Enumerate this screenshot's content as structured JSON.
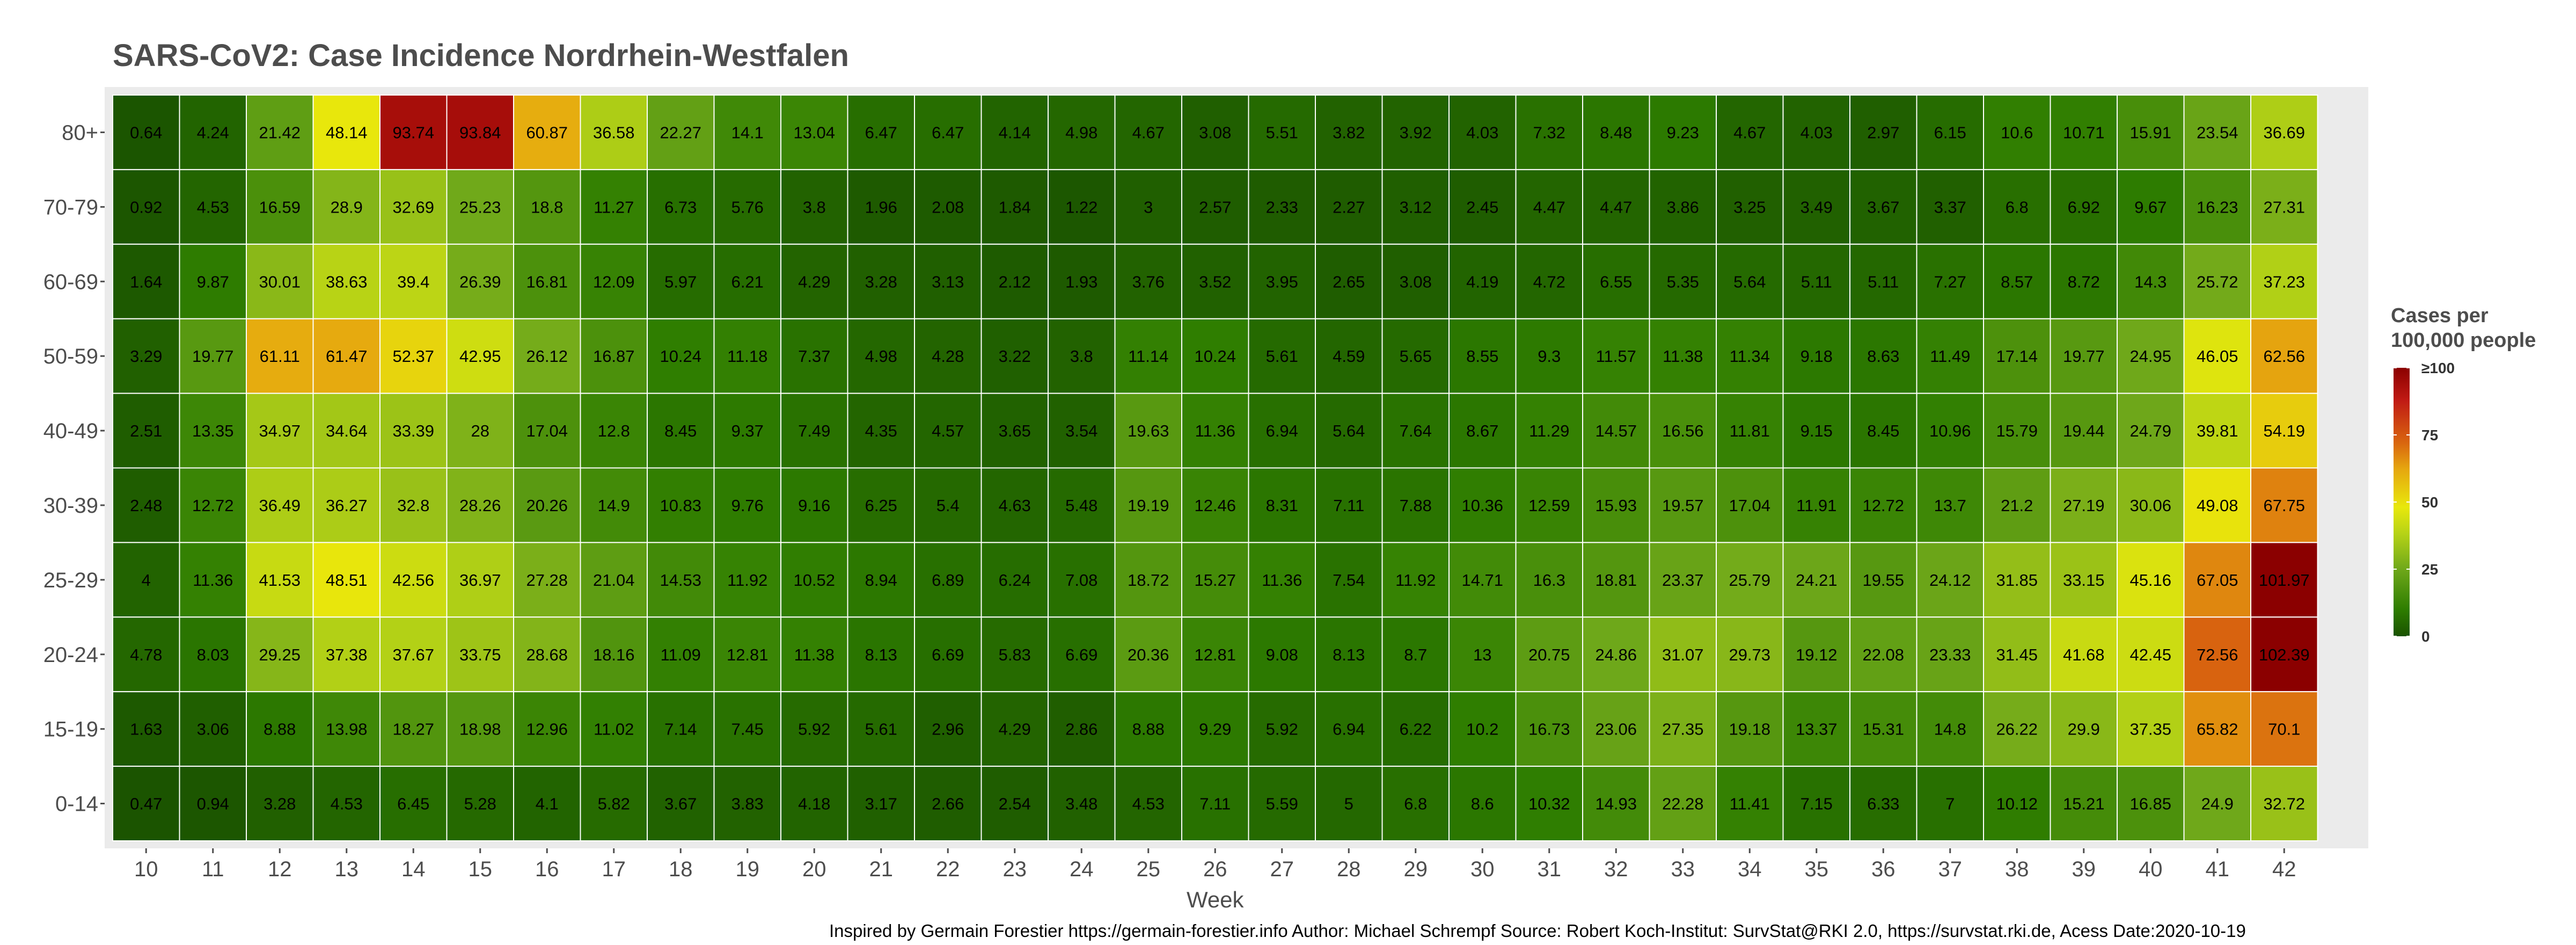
{
  "chart_data": {
    "type": "heatmap",
    "title": "SARS-CoV2: Case Incidence Nordrhein-Westfalen",
    "xlabel": "Week",
    "ylabel": "",
    "x": [
      "10",
      "11",
      "12",
      "13",
      "14",
      "15",
      "16",
      "17",
      "18",
      "19",
      "20",
      "21",
      "22",
      "23",
      "24",
      "25",
      "26",
      "27",
      "28",
      "29",
      "30",
      "31",
      "32",
      "33",
      "34",
      "35",
      "36",
      "37",
      "38",
      "39",
      "40",
      "41",
      "42"
    ],
    "y": [
      "80+",
      "70-79",
      "60-69",
      "50-59",
      "40-49",
      "30-39",
      "25-29",
      "20-24",
      "15-19",
      "0-14"
    ],
    "values": [
      [
        0.64,
        4.24,
        21.42,
        48.14,
        93.74,
        93.84,
        60.87,
        36.58,
        22.27,
        14.1,
        13.04,
        6.47,
        6.47,
        4.14,
        4.98,
        4.67,
        3.08,
        5.51,
        3.82,
        3.92,
        4.03,
        7.32,
        8.48,
        9.23,
        4.67,
        4.03,
        2.97,
        6.15,
        10.6,
        10.71,
        15.91,
        23.54,
        36.69
      ],
      [
        0.92,
        4.53,
        16.59,
        28.9,
        32.69,
        25.23,
        18.8,
        11.27,
        6.73,
        5.76,
        3.8,
        1.96,
        2.08,
        1.84,
        1.22,
        3,
        2.57,
        2.33,
        2.27,
        3.12,
        2.45,
        4.47,
        4.47,
        3.86,
        3.25,
        3.49,
        3.67,
        3.37,
        6.8,
        6.92,
        9.67,
        16.23,
        27.31
      ],
      [
        1.64,
        9.87,
        30.01,
        38.63,
        39.4,
        26.39,
        16.81,
        12.09,
        5.97,
        6.21,
        4.29,
        3.28,
        3.13,
        2.12,
        1.93,
        3.76,
        3.52,
        3.95,
        2.65,
        3.08,
        4.19,
        4.72,
        6.55,
        5.35,
        5.64,
        5.11,
        5.11,
        7.27,
        8.57,
        8.72,
        14.3,
        25.72,
        37.23
      ],
      [
        3.29,
        19.77,
        61.11,
        61.47,
        52.37,
        42.95,
        26.12,
        16.87,
        10.24,
        11.18,
        7.37,
        4.98,
        4.28,
        3.22,
        3.8,
        11.14,
        10.24,
        5.61,
        4.59,
        5.65,
        8.55,
        9.3,
        11.57,
        11.38,
        11.34,
        9.18,
        8.63,
        11.49,
        17.14,
        19.77,
        24.95,
        46.05,
        62.56
      ],
      [
        2.51,
        13.35,
        34.97,
        34.64,
        33.39,
        28,
        17.04,
        12.8,
        8.45,
        9.37,
        7.49,
        4.35,
        4.57,
        3.65,
        3.54,
        19.63,
        11.36,
        6.94,
        5.64,
        7.64,
        8.67,
        11.29,
        14.57,
        16.56,
        11.81,
        9.15,
        8.45,
        10.96,
        15.79,
        19.44,
        24.79,
        39.81,
        54.19
      ],
      [
        2.48,
        12.72,
        36.49,
        36.27,
        32.8,
        28.26,
        20.26,
        14.9,
        10.83,
        9.76,
        9.16,
        6.25,
        5.4,
        4.63,
        5.48,
        19.19,
        12.46,
        8.31,
        7.11,
        7.88,
        10.36,
        12.59,
        15.93,
        19.57,
        17.04,
        11.91,
        12.72,
        13.7,
        21.2,
        27.19,
        30.06,
        49.08,
        67.75
      ],
      [
        4,
        11.36,
        41.53,
        48.51,
        42.56,
        36.97,
        27.28,
        21.04,
        14.53,
        11.92,
        10.52,
        8.94,
        6.89,
        6.24,
        7.08,
        18.72,
        15.27,
        11.36,
        7.54,
        11.92,
        14.71,
        16.3,
        18.81,
        23.37,
        25.79,
        24.21,
        19.55,
        24.12,
        31.85,
        33.15,
        45.16,
        67.05,
        101.97
      ],
      [
        4.78,
        8.03,
        29.25,
        37.38,
        37.67,
        33.75,
        28.68,
        18.16,
        11.09,
        12.81,
        11.38,
        8.13,
        6.69,
        5.83,
        6.69,
        20.36,
        12.81,
        9.08,
        8.13,
        8.7,
        13,
        20.75,
        24.86,
        31.07,
        29.73,
        19.12,
        22.08,
        23.33,
        31.45,
        41.68,
        42.45,
        72.56,
        102.39
      ],
      [
        1.63,
        3.06,
        8.88,
        13.98,
        18.27,
        18.98,
        12.96,
        11.02,
        7.14,
        7.45,
        5.92,
        5.61,
        2.96,
        4.29,
        2.86,
        8.88,
        9.29,
        5.92,
        6.94,
        6.22,
        10.2,
        16.73,
        23.06,
        27.35,
        19.18,
        13.37,
        15.31,
        14.8,
        26.22,
        29.9,
        37.35,
        65.82,
        70.1
      ],
      [
        0.47,
        0.94,
        3.28,
        4.53,
        6.45,
        5.28,
        4.1,
        5.82,
        3.67,
        3.83,
        4.18,
        3.17,
        2.66,
        2.54,
        3.48,
        4.53,
        7.11,
        5.59,
        5,
        6.8,
        8.6,
        10.32,
        14.93,
        22.28,
        11.41,
        7.15,
        6.33,
        7,
        10.12,
        15.21,
        16.85,
        24.9,
        32.72
      ]
    ],
    "grid": true,
    "legend": {
      "title_lines": [
        "Cases per",
        "100,000 people"
      ],
      "ticks": [
        "≥100",
        "75",
        "50",
        "25",
        "0"
      ],
      "tick_values": [
        100,
        75,
        50,
        25,
        0
      ],
      "placement": "right",
      "colors": [
        "#1a5200",
        "#2e7d00",
        "#6fa81a",
        "#b5d216",
        "#e8e80c",
        "#e6a80f",
        "#d9660f",
        "#c01a14",
        "#8b0000"
      ]
    }
  },
  "caption": "Inspired by Germain Forestier https://germain-forestier.info Author: Michael Schrempf Source: Robert Koch-Institut: SurvStat@RKI 2.0, https://survstat.rki.de, Acess Date:2020-10-19"
}
